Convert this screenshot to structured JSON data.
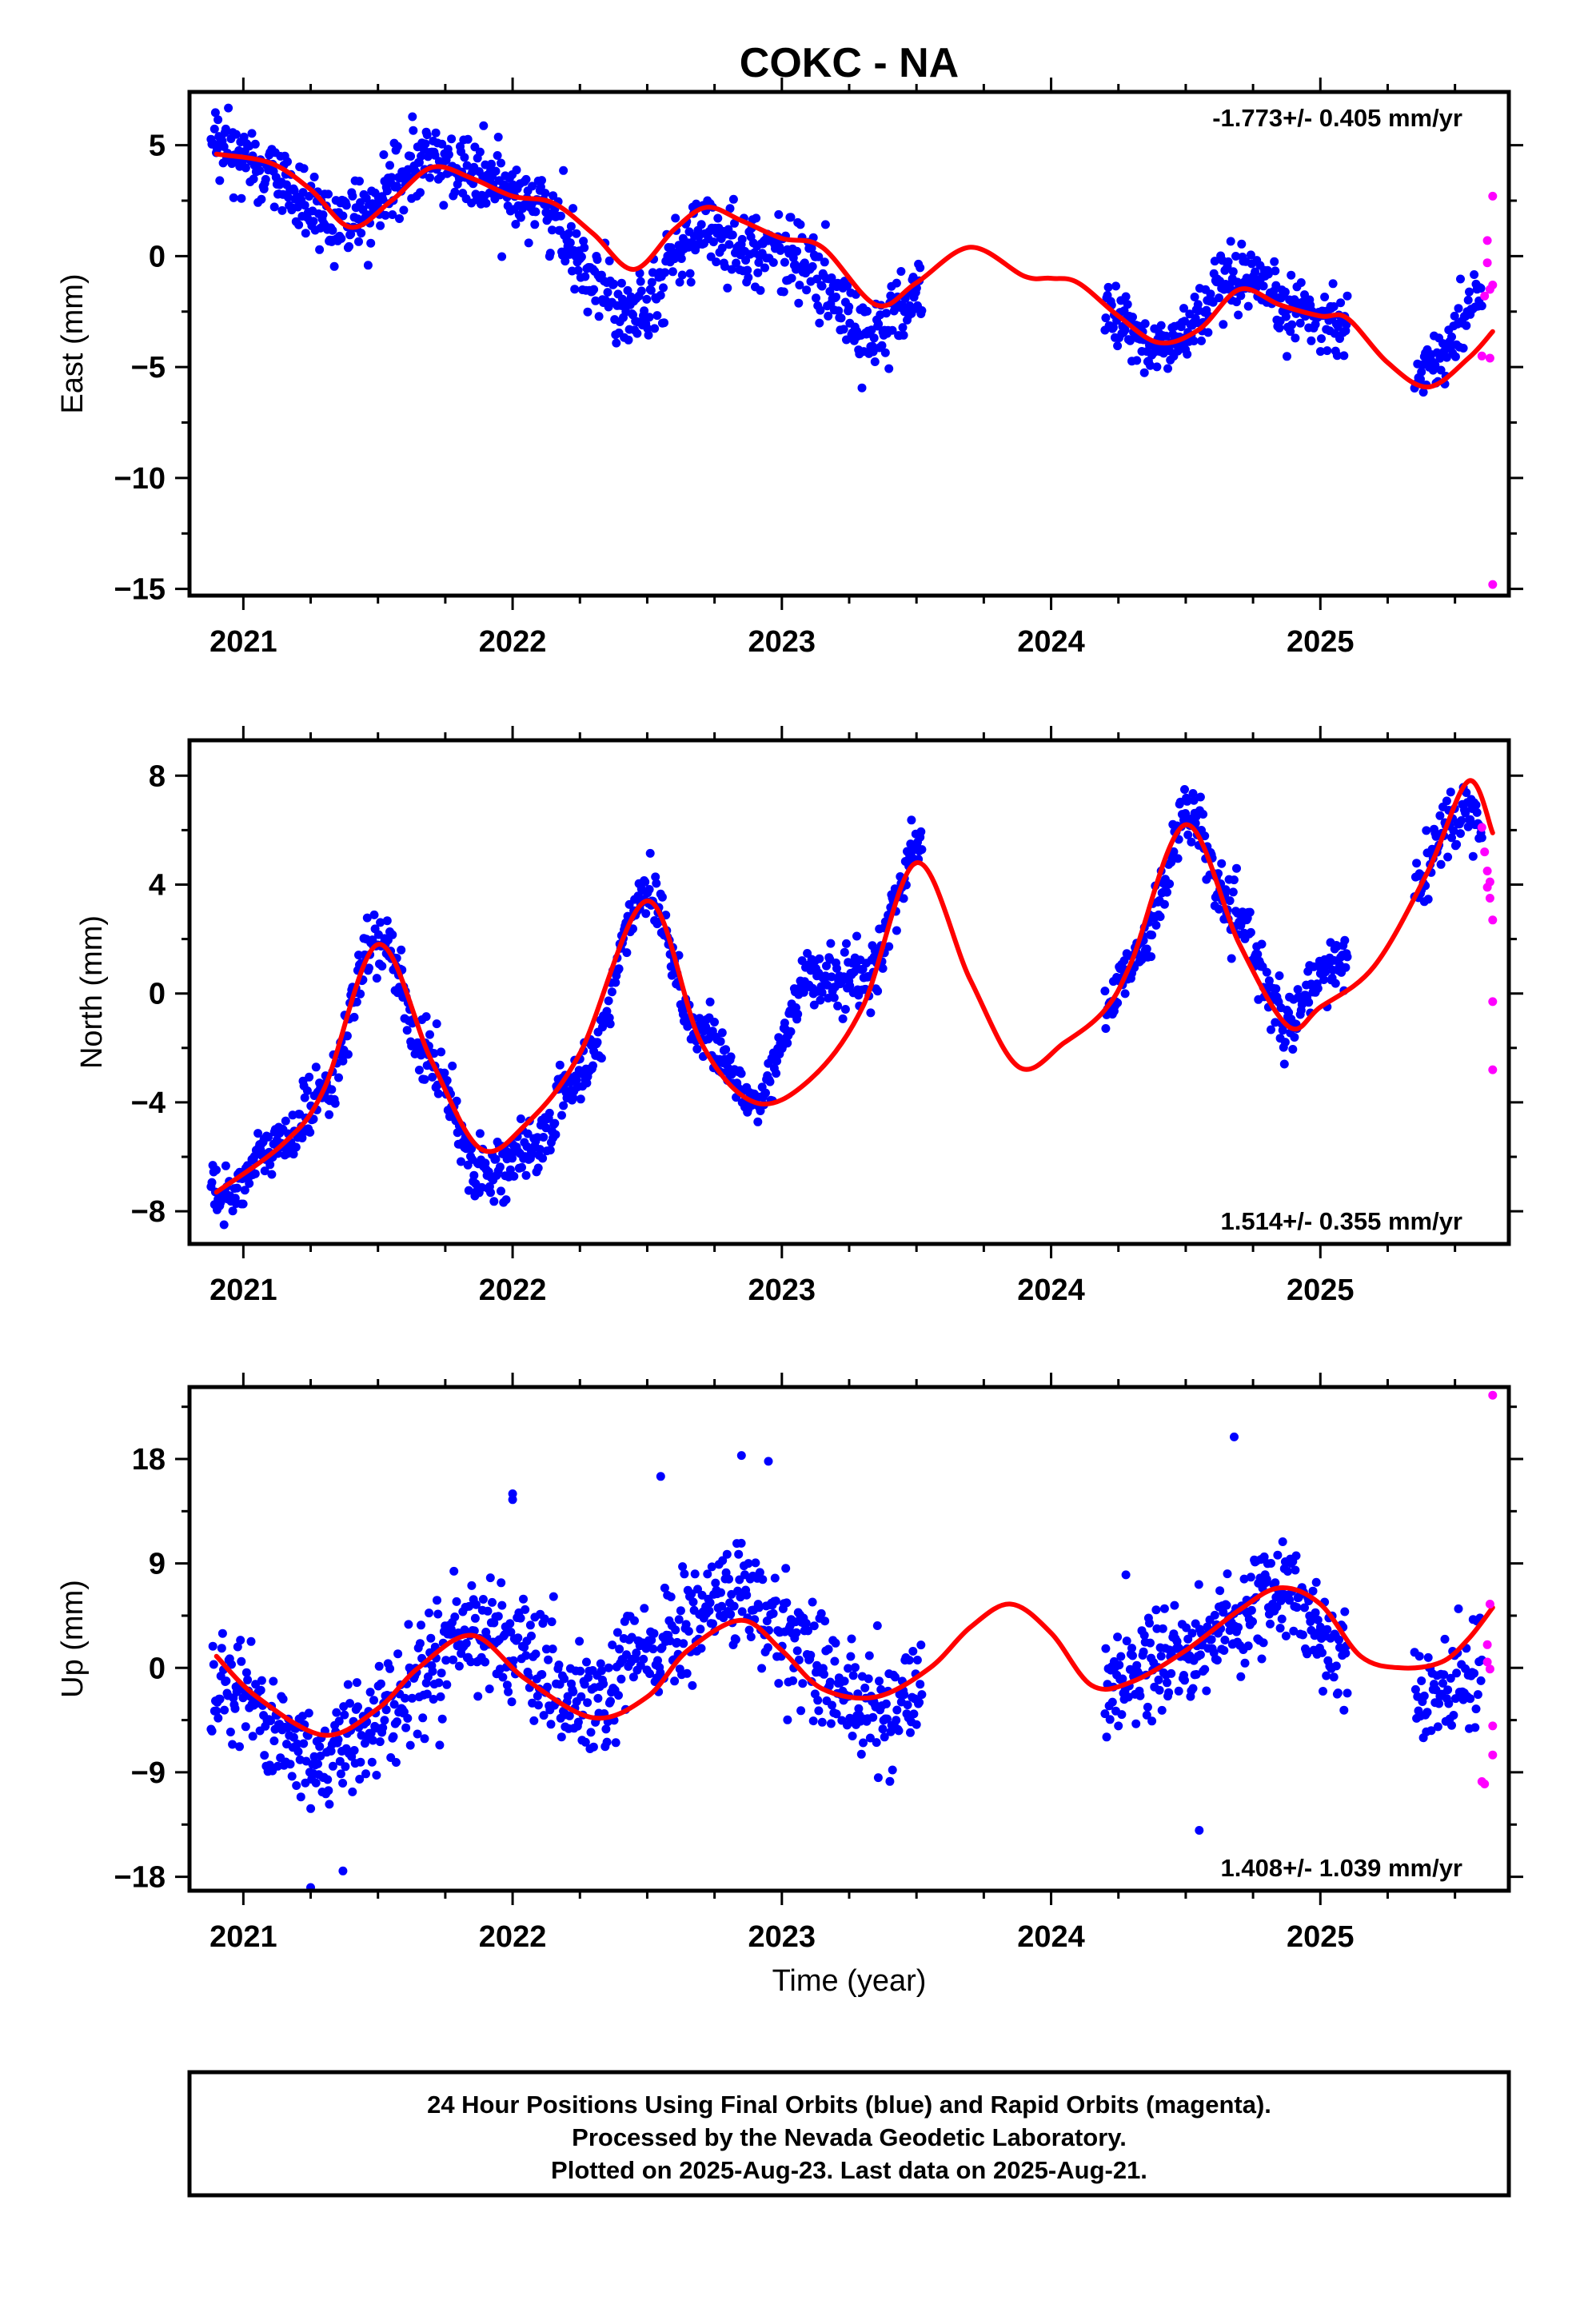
{
  "chart_data": {
    "title": "COKC - NA",
    "xlabel": "Time (year)",
    "x_ticks": [
      2021,
      2022,
      2023,
      2024,
      2025
    ],
    "xlim": [
      2020.8,
      2025.7
    ],
    "panels": [
      {
        "type": "scatter",
        "ylabel": "East (mm)",
        "ylim": [
          -15.3,
          7.4
        ],
        "y_ticks": [
          5,
          0,
          -5,
          -10,
          -15
        ],
        "rate_label": "-1.773+/- 0.405 mm/yr",
        "rate_position": "top-right",
        "model_curve": {
          "color": "#ff0000",
          "x": [
            2020.9,
            2021.1,
            2021.25,
            2021.4,
            2021.55,
            2021.7,
            2021.85,
            2022.0,
            2022.15,
            2022.3,
            2022.45,
            2022.6,
            2022.72,
            2022.85,
            2023.0,
            2023.15,
            2023.35,
            2023.5,
            2023.7,
            2023.9,
            2024.0,
            2024.1,
            2024.25,
            2024.4,
            2024.55,
            2024.7,
            2024.85,
            2025.0,
            2025.1,
            2025.25,
            2025.4,
            2025.55,
            2025.64
          ],
          "y": [
            4.6,
            4.2,
            3.0,
            1.3,
            2.5,
            4.0,
            3.5,
            2.7,
            2.4,
            1.0,
            -0.6,
            1.2,
            2.2,
            1.6,
            0.8,
            0.4,
            -2.2,
            -1.2,
            0.4,
            -0.9,
            -1.0,
            -1.2,
            -2.7,
            -3.9,
            -3.3,
            -1.5,
            -2.2,
            -2.7,
            -2.8,
            -4.8,
            -5.9,
            -4.6,
            -3.4
          ]
        },
        "series": [
          {
            "name": "Final Orbits",
            "color": "#0000ff",
            "segments": [
              {
                "x0": 2020.88,
                "x1": 2023.52,
                "trend_x": [
                  2020.9,
                  2021.4,
                  2021.7,
                  2022.0,
                  2022.45,
                  2022.7,
                  2023.0,
                  2023.35,
                  2023.52
                ],
                "trend_y": [
                  4.8,
                  1.5,
                  4.3,
                  3.0,
                  -2.2,
                  1.0,
                  0.2,
                  -3.5,
                  -1.6
                ],
                "spread": 1.4,
                "n": 820
              },
              {
                "x0": 2024.2,
                "x1": 2025.1,
                "trend_x": [
                  2024.2,
                  2024.4,
                  2024.7,
                  2024.9,
                  2025.1
                ],
                "trend_y": [
                  -2.6,
                  -4.2,
                  -1.2,
                  -2.4,
                  -3.0
                ],
                "spread": 1.2,
                "n": 290
              },
              {
                "x0": 2025.35,
                "x1": 2025.6,
                "trend_x": [
                  2025.35,
                  2025.45,
                  2025.6
                ],
                "trend_y": [
                  -5.4,
                  -4.5,
                  -1.4
                ],
                "spread": 1.1,
                "n": 70
              }
            ]
          },
          {
            "name": "Rapid Orbits",
            "color": "#ff00ff",
            "points_x": [
              2025.6,
              2025.61,
              2025.62,
              2025.62,
              2025.63,
              2025.63,
              2025.64,
              2025.64,
              2025.64
            ],
            "points_y": [
              -4.5,
              -1.8,
              0.7,
              -0.3,
              -1.5,
              -4.6,
              2.7,
              -1.3,
              -14.8
            ]
          }
        ]
      },
      {
        "type": "scatter",
        "ylabel": "North (mm)",
        "ylim": [
          -9.2,
          9.3
        ],
        "y_ticks": [
          8,
          4,
          0,
          -4,
          -8
        ],
        "rate_label": "1.514+/- 0.355 mm/yr",
        "rate_position": "bottom-right",
        "model_curve": {
          "color": "#ff0000",
          "x": [
            2020.9,
            2021.15,
            2021.3,
            2021.5,
            2021.7,
            2021.88,
            2022.05,
            2022.25,
            2022.5,
            2022.7,
            2022.9,
            2023.1,
            2023.3,
            2023.5,
            2023.7,
            2023.88,
            2024.05,
            2024.2,
            2024.3,
            2024.5,
            2024.7,
            2024.88,
            2025.0,
            2025.2,
            2025.4,
            2025.55,
            2025.64
          ],
          "y": [
            -7.3,
            -5.5,
            -3.5,
            1.8,
            -2.5,
            -5.7,
            -4.8,
            -2.2,
            3.4,
            -1.8,
            -4.0,
            -3.2,
            -0.5,
            4.8,
            0.5,
            -2.7,
            -1.8,
            -0.6,
            1.2,
            6.2,
            1.8,
            -1.2,
            -0.5,
            1.0,
            4.5,
            7.8,
            5.9
          ]
        },
        "series": [
          {
            "name": "Final Orbits",
            "color": "#0000ff",
            "segments": [
              {
                "x0": 2020.88,
                "x1": 2023.52,
                "trend_x": [
                  2020.9,
                  2021.15,
                  2021.3,
                  2021.5,
                  2021.7,
                  2021.88,
                  2022.05,
                  2022.25,
                  2022.5,
                  2022.7,
                  2022.9,
                  2023.1,
                  2023.3,
                  2023.52
                ],
                "trend_y": [
                  -7.5,
                  -5.5,
                  -3.5,
                  2.0,
                  -2.5,
                  -6.5,
                  -6.0,
                  -3.0,
                  3.8,
                  -1.5,
                  -4.0,
                  0.5,
                  0.5,
                  5.5
                ],
                "spread": 0.9,
                "n": 820
              },
              {
                "x0": 2024.2,
                "x1": 2025.1,
                "trend_x": [
                  2024.2,
                  2024.35,
                  2024.5,
                  2024.7,
                  2024.88,
                  2025.0,
                  2025.1
                ],
                "trend_y": [
                  -0.5,
                  2.0,
                  6.5,
                  2.5,
                  -1.2,
                  0.5,
                  1.5
                ],
                "spread": 0.9,
                "n": 290
              },
              {
                "x0": 2025.35,
                "x1": 2025.6,
                "trend_x": [
                  2025.35,
                  2025.5,
                  2025.6
                ],
                "trend_y": [
                  4.0,
                  6.5,
                  6.8
                ],
                "spread": 1.0,
                "n": 70
              }
            ]
          },
          {
            "name": "Rapid Orbits",
            "color": "#ff00ff",
            "points_x": [
              2025.6,
              2025.61,
              2025.62,
              2025.62,
              2025.63,
              2025.63,
              2025.64,
              2025.64,
              2025.64
            ],
            "points_y": [
              6.1,
              5.2,
              4.5,
              3.9,
              4.1,
              3.5,
              2.7,
              -0.3,
              -2.8
            ]
          }
        ]
      },
      {
        "type": "scatter",
        "ylabel": "Up (mm)",
        "ylim": [
          -19.2,
          24.2
        ],
        "y_ticks": [
          18,
          9,
          0,
          -9,
          -18
        ],
        "rate_label": "1.408+/- 1.039 mm/yr",
        "rate_position": "bottom-right",
        "model_curve": {
          "color": "#ff0000",
          "x": [
            2020.9,
            2021.05,
            2021.3,
            2021.5,
            2021.65,
            2021.85,
            2022.05,
            2022.3,
            2022.5,
            2022.65,
            2022.85,
            2023.0,
            2023.15,
            2023.35,
            2023.55,
            2023.7,
            2023.85,
            2024.0,
            2024.15,
            2024.3,
            2024.5,
            2024.7,
            2024.85,
            2025.0,
            2025.15,
            2025.3,
            2025.45,
            2025.55,
            2025.64
          ],
          "y": [
            1.0,
            -2.5,
            -5.8,
            -3.5,
            0.0,
            2.8,
            -1.0,
            -4.3,
            -2.5,
            1.5,
            4.1,
            1.5,
            -1.8,
            -2.5,
            0.0,
            3.5,
            5.5,
            3.0,
            -1.5,
            -1.2,
            1.5,
            5.0,
            6.9,
            5.5,
            1.0,
            0.0,
            0.5,
            2.5,
            5.2
          ]
        },
        "series": [
          {
            "name": "Final Orbits",
            "color": "#0000ff",
            "segments": [
              {
                "x0": 2020.88,
                "x1": 2023.52,
                "trend_x": [
                  2020.9,
                  2021.3,
                  2021.5,
                  2021.85,
                  2022.3,
                  2022.5,
                  2022.85,
                  2023.0,
                  2023.35,
                  2023.52
                ],
                "trend_y": [
                  -1.0,
                  -8.0,
                  -4.0,
                  3.5,
                  -3.5,
                  1.5,
                  6.5,
                  3.0,
                  -4.0,
                  -2.0
                ],
                "spread": 4.0,
                "n": 800
              },
              {
                "x0": 2024.2,
                "x1": 2025.1,
                "trend_x": [
                  2024.2,
                  2024.5,
                  2024.85,
                  2025.1
                ],
                "trend_y": [
                  -1.0,
                  1.5,
                  6.5,
                  1.5
                ],
                "spread": 3.8,
                "n": 290
              },
              {
                "x0": 2025.35,
                "x1": 2025.6,
                "trend_x": [
                  2025.35,
                  2025.6
                ],
                "trend_y": [
                  -2.0,
                  -1.0
                ],
                "spread": 3.8,
                "n": 70
              }
            ],
            "extra_points_x": [
              2021.25,
              2021.37,
              2022.0,
              2022.0,
              2022.55,
              2022.85,
              2022.95,
              2024.55,
              2024.68
            ],
            "extra_points_y": [
              -19.0,
              -17.5,
              14.5,
              15.0,
              16.5,
              18.3,
              17.8,
              -14.0,
              19.9
            ]
          },
          {
            "name": "Rapid Orbits",
            "color": "#ff00ff",
            "points_x": [
              2025.6,
              2025.61,
              2025.62,
              2025.62,
              2025.63,
              2025.63,
              2025.64,
              2025.64,
              2025.64
            ],
            "points_y": [
              -9.8,
              -10.0,
              2.0,
              0.5,
              -0.1,
              5.5,
              -5.0,
              -7.5,
              23.5
            ]
          }
        ]
      }
    ]
  },
  "footer": {
    "line1": "24 Hour Positions Using Final Orbits (blue) and Rapid Orbits (magenta).",
    "line2": "Processed by the Nevada Geodetic Laboratory.",
    "line3": "Plotted on 2025-Aug-23. Last data on 2025-Aug-21."
  }
}
